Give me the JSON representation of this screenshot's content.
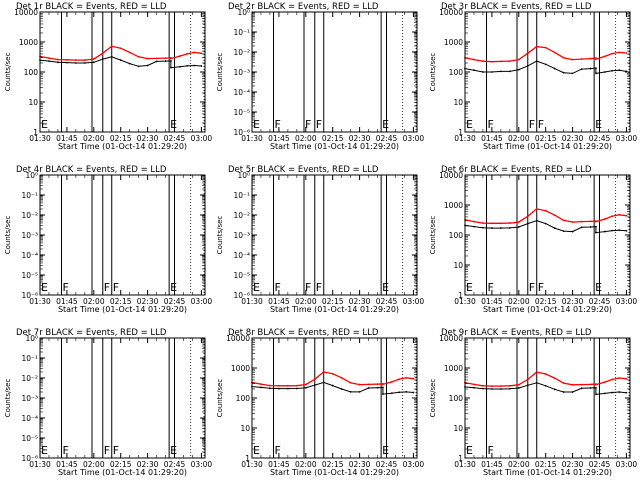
{
  "colors": {
    "background": "#ffffff",
    "axis": "#000000",
    "events": "#000000",
    "lld": "#ff0000"
  },
  "chart_data": [
    {
      "title": "Det 1r BLACK = Events, RED = LLD",
      "type": "line",
      "ylabel": "Counts/sec",
      "xlabel": "Start Time (01-Oct-14 01:29:20)",
      "ylim": [
        1,
        10000
      ],
      "yticks": [
        "1",
        "10",
        "100",
        "1000",
        "10000"
      ],
      "xticks": [
        "01:30",
        "01:45",
        "02:00",
        "02:15",
        "02:30",
        "02:45",
        "03:00"
      ],
      "markers": [
        {
          "label": "E",
          "x": 0
        },
        {
          "label": "",
          "x": 12
        },
        {
          "label": "",
          "x": 29
        },
        {
          "label": "",
          "x": 35
        },
        {
          "label": "",
          "x": 40
        },
        {
          "label": "E",
          "x": 72
        },
        {
          "label": "",
          "x": 75
        }
      ],
      "series": [
        {
          "name": "Events",
          "color": "#000000",
          "x": [
            0,
            5,
            10,
            15,
            20,
            25,
            30,
            35,
            40,
            45,
            50,
            55,
            60,
            65,
            70,
            73,
            73,
            78,
            82,
            86,
            90
          ],
          "y": [
            250,
            230,
            210,
            205,
            200,
            200,
            210,
            270,
            320,
            250,
            190,
            155,
            165,
            225,
            230,
            235,
            140,
            150,
            160,
            165,
            158
          ]
        },
        {
          "name": "LLD",
          "color": "#ff0000",
          "x": [
            0,
            5,
            10,
            15,
            20,
            25,
            30,
            35,
            40,
            45,
            50,
            55,
            60,
            65,
            70,
            73,
            73,
            78,
            82,
            86,
            90
          ],
          "y": [
            330,
            290,
            260,
            255,
            250,
            250,
            270,
            420,
            720,
            620,
            450,
            320,
            280,
            285,
            290,
            295,
            280,
            340,
            400,
            450,
            420
          ]
        }
      ]
    },
    {
      "title": "Det 2r BLACK = Events, RED = LLD",
      "type": "line",
      "ylabel": "Counts/sec",
      "xlabel": "Start Time (01-Oct-14 01:29:20)",
      "ylim": [
        1e-06,
        1
      ],
      "yticks": [
        "10⁻⁶",
        "10⁻⁵",
        "10⁻⁴",
        "10⁻³",
        "10⁻²",
        "10⁻¹",
        "10⁰"
      ],
      "xticks": [
        "01:30",
        "01:45",
        "02:00",
        "02:15",
        "02:30",
        "02:45",
        "03:00"
      ],
      "markers": [
        {
          "label": "E",
          "x": 0
        },
        {
          "label": "F",
          "x": 12
        },
        {
          "label": "F",
          "x": 29
        },
        {
          "label": "F",
          "x": 35
        },
        {
          "label": "",
          "x": 40
        },
        {
          "label": "E",
          "x": 72
        },
        {
          "label": "",
          "x": 75
        }
      ],
      "series": []
    },
    {
      "title": "Det 3r BLACK = Events, RED = LLD",
      "type": "line",
      "ylabel": "Counts/sec",
      "xlabel": "Start Time (01-Oct-14 01:29:20)",
      "ylim": [
        1,
        10000
      ],
      "yticks": [
        "1",
        "10",
        "100",
        "1000",
        "10000"
      ],
      "xticks": [
        "01:30",
        "01:45",
        "02:00",
        "02:15",
        "02:30",
        "02:45",
        "03:00"
      ],
      "markers": [
        {
          "label": "E",
          "x": 0
        },
        {
          "label": "F",
          "x": 12
        },
        {
          "label": "",
          "x": 29
        },
        {
          "label": "F",
          "x": 35
        },
        {
          "label": "F",
          "x": 40
        },
        {
          "label": "E",
          "x": 72
        },
        {
          "label": "",
          "x": 75
        }
      ],
      "series": [
        {
          "name": "Events",
          "color": "#000000",
          "x": [
            0,
            5,
            10,
            15,
            20,
            25,
            30,
            35,
            40,
            45,
            50,
            55,
            60,
            65,
            70,
            73,
            73,
            78,
            82,
            86,
            90
          ],
          "y": [
            130,
            115,
            100,
            100,
            105,
            105,
            120,
            160,
            230,
            180,
            130,
            95,
            90,
            125,
            130,
            135,
            90,
            100,
            110,
            115,
            105
          ]
        },
        {
          "name": "LLD",
          "color": "#ff0000",
          "x": [
            0,
            5,
            10,
            15,
            20,
            25,
            30,
            35,
            40,
            45,
            50,
            55,
            60,
            65,
            70,
            73,
            73,
            78,
            82,
            86,
            90
          ],
          "y": [
            300,
            260,
            230,
            220,
            225,
            230,
            260,
            420,
            700,
            650,
            450,
            300,
            260,
            270,
            280,
            290,
            270,
            330,
            410,
            450,
            430
          ]
        }
      ]
    },
    {
      "title": "Det 4r BLACK = Events, RED = LLD",
      "type": "line",
      "ylabel": "Counts/sec",
      "xlabel": "Start Time (01-Oct-14 01:29:20)",
      "ylim": [
        1e-06,
        1
      ],
      "yticks": [
        "10⁻⁶",
        "10⁻⁵",
        "10⁻⁴",
        "10⁻³",
        "10⁻²",
        "10⁻¹",
        "10⁰"
      ],
      "xticks": [
        "01:30",
        "01:45",
        "02:00",
        "02:15",
        "02:30",
        "02:45",
        "03:00"
      ],
      "markers": [
        {
          "label": "E",
          "x": 0
        },
        {
          "label": "F",
          "x": 12
        },
        {
          "label": "",
          "x": 29
        },
        {
          "label": "F",
          "x": 35
        },
        {
          "label": "F",
          "x": 40
        },
        {
          "label": "E",
          "x": 72
        },
        {
          "label": "",
          "x": 75
        }
      ],
      "series": []
    },
    {
      "title": "Det 5r BLACK = Events, RED = LLD",
      "type": "line",
      "ylabel": "Counts/sec",
      "xlabel": "Start Time (01-Oct-14 01:29:20)",
      "ylim": [
        1e-06,
        1
      ],
      "yticks": [
        "10⁻⁶",
        "10⁻⁵",
        "10⁻⁴",
        "10⁻³",
        "10⁻²",
        "10⁻¹",
        "10⁰"
      ],
      "xticks": [
        "01:30",
        "01:45",
        "02:00",
        "02:15",
        "02:30",
        "02:45",
        "03:00"
      ],
      "markers": [
        {
          "label": "E",
          "x": 0
        },
        {
          "label": "F",
          "x": 12
        },
        {
          "label": "F",
          "x": 29
        },
        {
          "label": "F",
          "x": 35
        },
        {
          "label": "",
          "x": 40
        },
        {
          "label": "E",
          "x": 72
        },
        {
          "label": "",
          "x": 75
        }
      ],
      "series": []
    },
    {
      "title": "Det 6r BLACK = Events, RED = LLD",
      "type": "line",
      "ylabel": "Counts/sec",
      "xlabel": "Start Time (01-Oct-14 01:29:20)",
      "ylim": [
        1,
        10000
      ],
      "yticks": [
        "1",
        "10",
        "100",
        "1000",
        "10000"
      ],
      "xticks": [
        "01:30",
        "01:45",
        "02:00",
        "02:15",
        "02:30",
        "02:45",
        "03:00"
      ],
      "markers": [
        {
          "label": "E",
          "x": 0
        },
        {
          "label": "F",
          "x": 12
        },
        {
          "label": "",
          "x": 29
        },
        {
          "label": "F",
          "x": 35
        },
        {
          "label": "F",
          "x": 40
        },
        {
          "label": "E",
          "x": 72
        },
        {
          "label": "",
          "x": 75
        }
      ],
      "series": [
        {
          "name": "Events",
          "color": "#000000",
          "x": [
            0,
            5,
            10,
            15,
            20,
            25,
            30,
            35,
            40,
            45,
            50,
            55,
            60,
            65,
            70,
            73,
            73,
            78,
            82,
            86,
            90
          ],
          "y": [
            210,
            190,
            175,
            170,
            170,
            172,
            185,
            240,
            300,
            240,
            170,
            135,
            130,
            180,
            185,
            190,
            120,
            130,
            140,
            145,
            138
          ]
        },
        {
          "name": "LLD",
          "color": "#ff0000",
          "x": [
            0,
            5,
            10,
            15,
            20,
            25,
            30,
            35,
            40,
            45,
            50,
            55,
            60,
            65,
            70,
            73,
            73,
            78,
            82,
            86,
            90
          ],
          "y": [
            320,
            280,
            250,
            245,
            245,
            250,
            270,
            420,
            740,
            640,
            460,
            310,
            270,
            280,
            285,
            290,
            280,
            340,
            420,
            470,
            440
          ]
        }
      ]
    },
    {
      "title": "Det 7r BLACK = Events, RED = LLD",
      "type": "line",
      "ylabel": "Counts/sec",
      "xlabel": "Start Time (01-Oct-14 01:29:20)",
      "ylim": [
        1e-06,
        1
      ],
      "yticks": [
        "10⁻⁶",
        "10⁻⁵",
        "10⁻⁴",
        "10⁻³",
        "10⁻²",
        "10⁻¹",
        "10⁰"
      ],
      "xticks": [
        "01:30",
        "01:45",
        "02:00",
        "02:15",
        "02:30",
        "02:45",
        "03:00"
      ],
      "markers": [
        {
          "label": "E",
          "x": 0
        },
        {
          "label": "F",
          "x": 12
        },
        {
          "label": "",
          "x": 29
        },
        {
          "label": "F",
          "x": 35
        },
        {
          "label": "F",
          "x": 40
        },
        {
          "label": "E",
          "x": 72
        },
        {
          "label": "",
          "x": 75
        }
      ],
      "series": []
    },
    {
      "title": "Det 8r BLACK = Events, RED = LLD",
      "type": "line",
      "ylabel": "Counts/sec",
      "xlabel": "Start Time (01-Oct-14 01:29:20)",
      "ylim": [
        1,
        10000
      ],
      "yticks": [
        "1",
        "10",
        "100",
        "1000",
        "10000"
      ],
      "xticks": [
        "01:30",
        "01:45",
        "02:00",
        "02:15",
        "02:30",
        "02:45",
        "03:00"
      ],
      "markers": [
        {
          "label": "E",
          "x": 0
        },
        {
          "label": "F",
          "x": 12
        },
        {
          "label": "",
          "x": 29
        },
        {
          "label": "",
          "x": 35
        },
        {
          "label": "",
          "x": 40
        },
        {
          "label": "E",
          "x": 72
        },
        {
          "label": "",
          "x": 75
        }
      ],
      "series": [
        {
          "name": "Events",
          "color": "#000000",
          "x": [
            0,
            5,
            10,
            15,
            20,
            25,
            30,
            35,
            40,
            45,
            50,
            55,
            60,
            65,
            70,
            73,
            73,
            78,
            82,
            86,
            90
          ],
          "y": [
            240,
            225,
            210,
            205,
            205,
            207,
            220,
            270,
            330,
            260,
            200,
            160,
            160,
            215,
            220,
            225,
            135,
            145,
            155,
            160,
            152
          ]
        },
        {
          "name": "LLD",
          "color": "#ff0000",
          "x": [
            0,
            5,
            10,
            15,
            20,
            25,
            30,
            35,
            40,
            45,
            50,
            55,
            60,
            65,
            70,
            73,
            73,
            78,
            82,
            86,
            90
          ],
          "y": [
            330,
            290,
            260,
            255,
            255,
            258,
            280,
            420,
            740,
            640,
            470,
            320,
            280,
            285,
            290,
            295,
            285,
            345,
            420,
            470,
            440
          ]
        }
      ]
    },
    {
      "title": "Det 9r BLACK = Events, RED = LLD",
      "type": "line",
      "ylabel": "Counts/sec",
      "xlabel": "Start Time (01-Oct-14 01:29:20)",
      "ylim": [
        1,
        10000
      ],
      "yticks": [
        "1",
        "10",
        "100",
        "1000",
        "10000"
      ],
      "xticks": [
        "01:30",
        "01:45",
        "02:00",
        "02:15",
        "02:30",
        "02:45",
        "03:00"
      ],
      "markers": [
        {
          "label": "E",
          "x": 0
        },
        {
          "label": "F",
          "x": 12
        },
        {
          "label": "",
          "x": 29
        },
        {
          "label": "",
          "x": 35
        },
        {
          "label": "",
          "x": 40
        },
        {
          "label": "E",
          "x": 72
        },
        {
          "label": "",
          "x": 75
        }
      ],
      "series": [
        {
          "name": "Events",
          "color": "#000000",
          "x": [
            0,
            5,
            10,
            15,
            20,
            25,
            30,
            35,
            40,
            45,
            50,
            55,
            60,
            65,
            70,
            73,
            73,
            78,
            82,
            86,
            90
          ],
          "y": [
            235,
            220,
            205,
            200,
            200,
            203,
            215,
            265,
            320,
            255,
            195,
            158,
            158,
            210,
            215,
            220,
            132,
            142,
            152,
            158,
            150
          ]
        },
        {
          "name": "LLD",
          "color": "#ff0000",
          "x": [
            0,
            5,
            10,
            15,
            20,
            25,
            30,
            35,
            40,
            45,
            50,
            55,
            60,
            65,
            70,
            73,
            73,
            78,
            82,
            86,
            90
          ],
          "y": [
            325,
            285,
            255,
            250,
            250,
            255,
            275,
            415,
            730,
            630,
            460,
            315,
            275,
            280,
            285,
            290,
            280,
            340,
            415,
            465,
            435
          ]
        }
      ]
    }
  ]
}
